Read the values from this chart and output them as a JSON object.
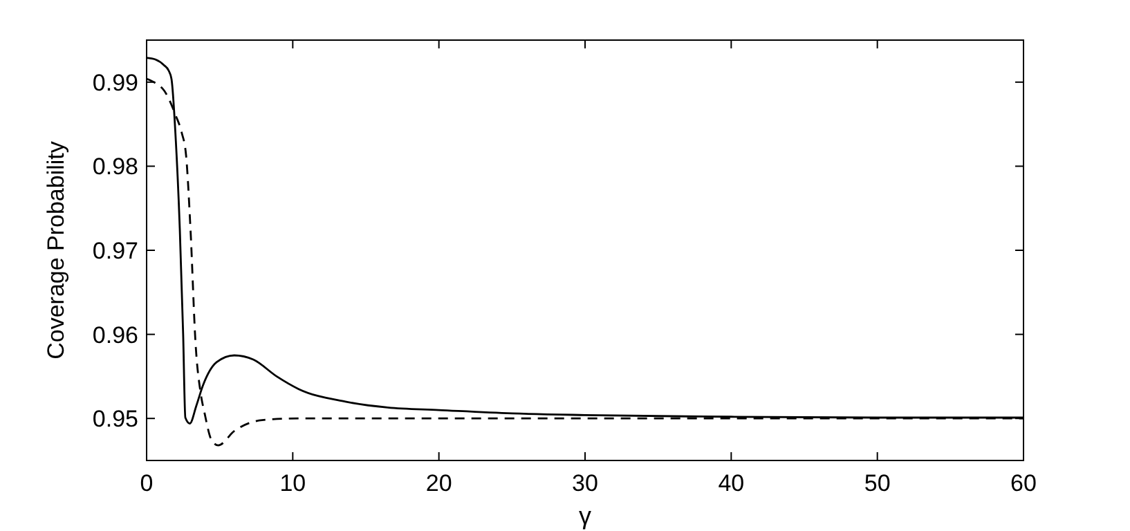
{
  "chart_data": {
    "type": "line",
    "xlabel": "γ",
    "ylabel": "Coverage Probability",
    "xlim": [
      0,
      60
    ],
    "ylim": [
      0.945,
      0.995
    ],
    "xticks": [
      0,
      10,
      20,
      30,
      40,
      50,
      60
    ],
    "yticks": [
      0.95,
      0.96,
      0.97,
      0.98,
      0.99
    ],
    "grid": false,
    "marker": "none",
    "series": [
      {
        "color": "#000000",
        "line_style": "solid",
        "x": [
          0,
          0.6,
          1.2,
          1.5,
          1.7,
          2.0,
          2.27,
          2.5,
          2.65,
          2.96,
          3.4,
          3.85,
          4.8,
          6.0,
          7.3,
          8.9,
          10.4,
          13.6,
          16.5,
          20,
          25,
          30,
          40,
          50,
          60
        ],
        "values": [
          0.9929,
          0.9927,
          0.992,
          0.9914,
          0.9904,
          0.983,
          0.9726,
          0.96,
          0.9501,
          0.9494,
          0.9515,
          0.9539,
          0.9567,
          0.9575,
          0.957,
          0.955,
          0.9535,
          0.952,
          0.9513,
          0.951,
          0.9506,
          0.9504,
          0.9502,
          0.9501,
          0.9501
        ]
      },
      {
        "color": "#000000",
        "line_style": "dashed",
        "x": [
          0,
          0.6,
          1.2,
          2.0,
          2.4,
          2.7,
          3.0,
          3.35,
          3.7,
          3.97,
          4.45,
          4.9,
          6.0,
          7.9,
          10.4,
          20,
          30,
          40,
          50,
          60
        ],
        "values": [
          0.9904,
          0.9899,
          0.989,
          0.986,
          0.984,
          0.9813,
          0.9726,
          0.9589,
          0.953,
          0.9506,
          0.9474,
          0.9468,
          0.9485,
          0.9498,
          0.95,
          0.95,
          0.95,
          0.95,
          0.95,
          0.95
        ]
      }
    ]
  }
}
